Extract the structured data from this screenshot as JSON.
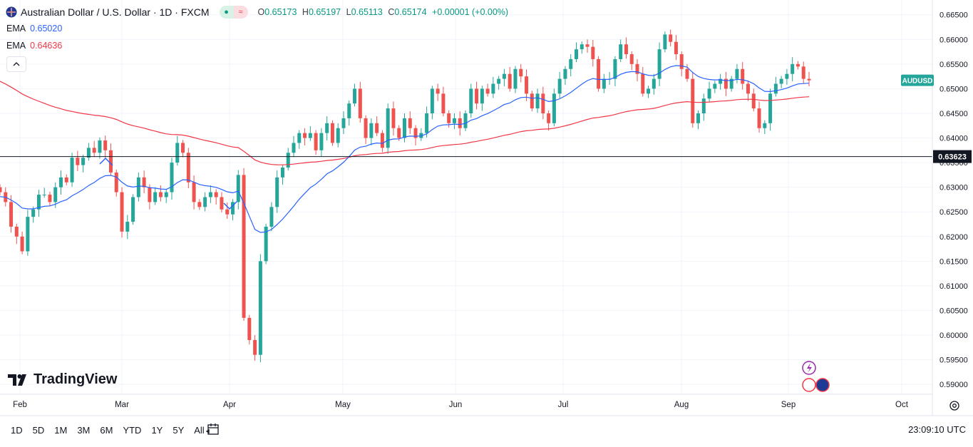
{
  "header": {
    "title": "Australian Dollar / U.S. Dollar · 1D · FXCM",
    "ohlc": {
      "o_label": "O",
      "o": "0.65173",
      "h_label": "H",
      "h": "0.65197",
      "l_label": "L",
      "l": "0.65113",
      "c_label": "C",
      "c": "0.65174",
      "change": "+0.00001 (+0.00%)"
    }
  },
  "indicators": [
    {
      "label": "EMA",
      "value": "0.65020",
      "color": "#2962ff"
    },
    {
      "label": "EMA",
      "value": "0.64636",
      "color": "#f23645"
    }
  ],
  "colors": {
    "up": "#26a69a",
    "down": "#ef5350",
    "ema50": "#2962ff",
    "ema200": "#f23645",
    "grid": "#f0f3fa"
  },
  "bottom_bar": {
    "timeframes": [
      "1D",
      "5D",
      "1M",
      "3M",
      "6M",
      "YTD",
      "1Y",
      "5Y",
      "All"
    ],
    "clock": "23:09:10 UTC"
  },
  "branding": {
    "logo_text": "TradingView"
  },
  "chart_data": {
    "type": "candlestick",
    "symbol_tag": "AUDUSD",
    "horizontal_line": {
      "value": 0.63623,
      "label": "0.63623"
    },
    "y_axis": {
      "ticks": [
        "0.66500",
        "0.66000",
        "0.65500",
        "0.65000",
        "0.64500",
        "0.64000",
        "0.63500",
        "0.63000",
        "0.62500",
        "0.62000",
        "0.61500",
        "0.61000",
        "0.60500",
        "0.60000",
        "0.59500",
        "0.59000"
      ],
      "range": [
        0.588,
        0.668
      ]
    },
    "x_axis": {
      "month_labels": [
        "Feb",
        "Mar",
        "Apr",
        "May",
        "Jun",
        "Jul",
        "Aug",
        "Sep",
        "Oct"
      ]
    },
    "ema_short_period_label": "EMA",
    "closes_daily": [
      0.629,
      0.627,
      0.622,
      0.62,
      0.617,
      0.624,
      0.6255,
      0.6285,
      0.6285,
      0.627,
      0.63,
      0.632,
      0.631,
      0.636,
      0.6345,
      0.636,
      0.638,
      0.637,
      0.6395,
      0.6375,
      0.633,
      0.629,
      0.621,
      0.623,
      0.628,
      0.632,
      0.63,
      0.627,
      0.629,
      0.628,
      0.629,
      0.635,
      0.639,
      0.637,
      0.631,
      0.627,
      0.626,
      0.628,
      0.629,
      0.628,
      0.6255,
      0.6245,
      0.627,
      0.6325,
      0.6035,
      0.599,
      0.596,
      0.615,
      0.622,
      0.626,
      0.632,
      0.634,
      0.637,
      0.639,
      0.641,
      0.64,
      0.641,
      0.6375,
      0.641,
      0.643,
      0.639,
      0.642,
      0.644,
      0.647,
      0.65,
      0.644,
      0.64,
      0.643,
      0.641,
      0.638,
      0.646,
      0.642,
      0.64,
      0.644,
      0.642,
      0.64,
      0.641,
      0.645,
      0.65,
      0.649,
      0.645,
      0.643,
      0.644,
      0.642,
      0.645,
      0.65,
      0.647,
      0.65,
      0.649,
      0.651,
      0.652,
      0.653,
      0.65,
      0.654,
      0.6525,
      0.649,
      0.646,
      0.649,
      0.645,
      0.643,
      0.649,
      0.652,
      0.654,
      0.656,
      0.658,
      0.659,
      0.6585,
      0.656,
      0.65,
      0.652,
      0.652,
      0.656,
      0.659,
      0.657,
      0.655,
      0.653,
      0.649,
      0.65,
      0.652,
      0.658,
      0.661,
      0.6595,
      0.657,
      0.654,
      0.652,
      0.643,
      0.645,
      0.648,
      0.65,
      0.651,
      0.652,
      0.65,
      0.652,
      0.654,
      0.651,
      0.649,
      0.646,
      0.642,
      0.643,
      0.649,
      0.651,
      0.652,
      0.653,
      0.655,
      0.6545,
      0.652,
      0.6517
    ]
  }
}
